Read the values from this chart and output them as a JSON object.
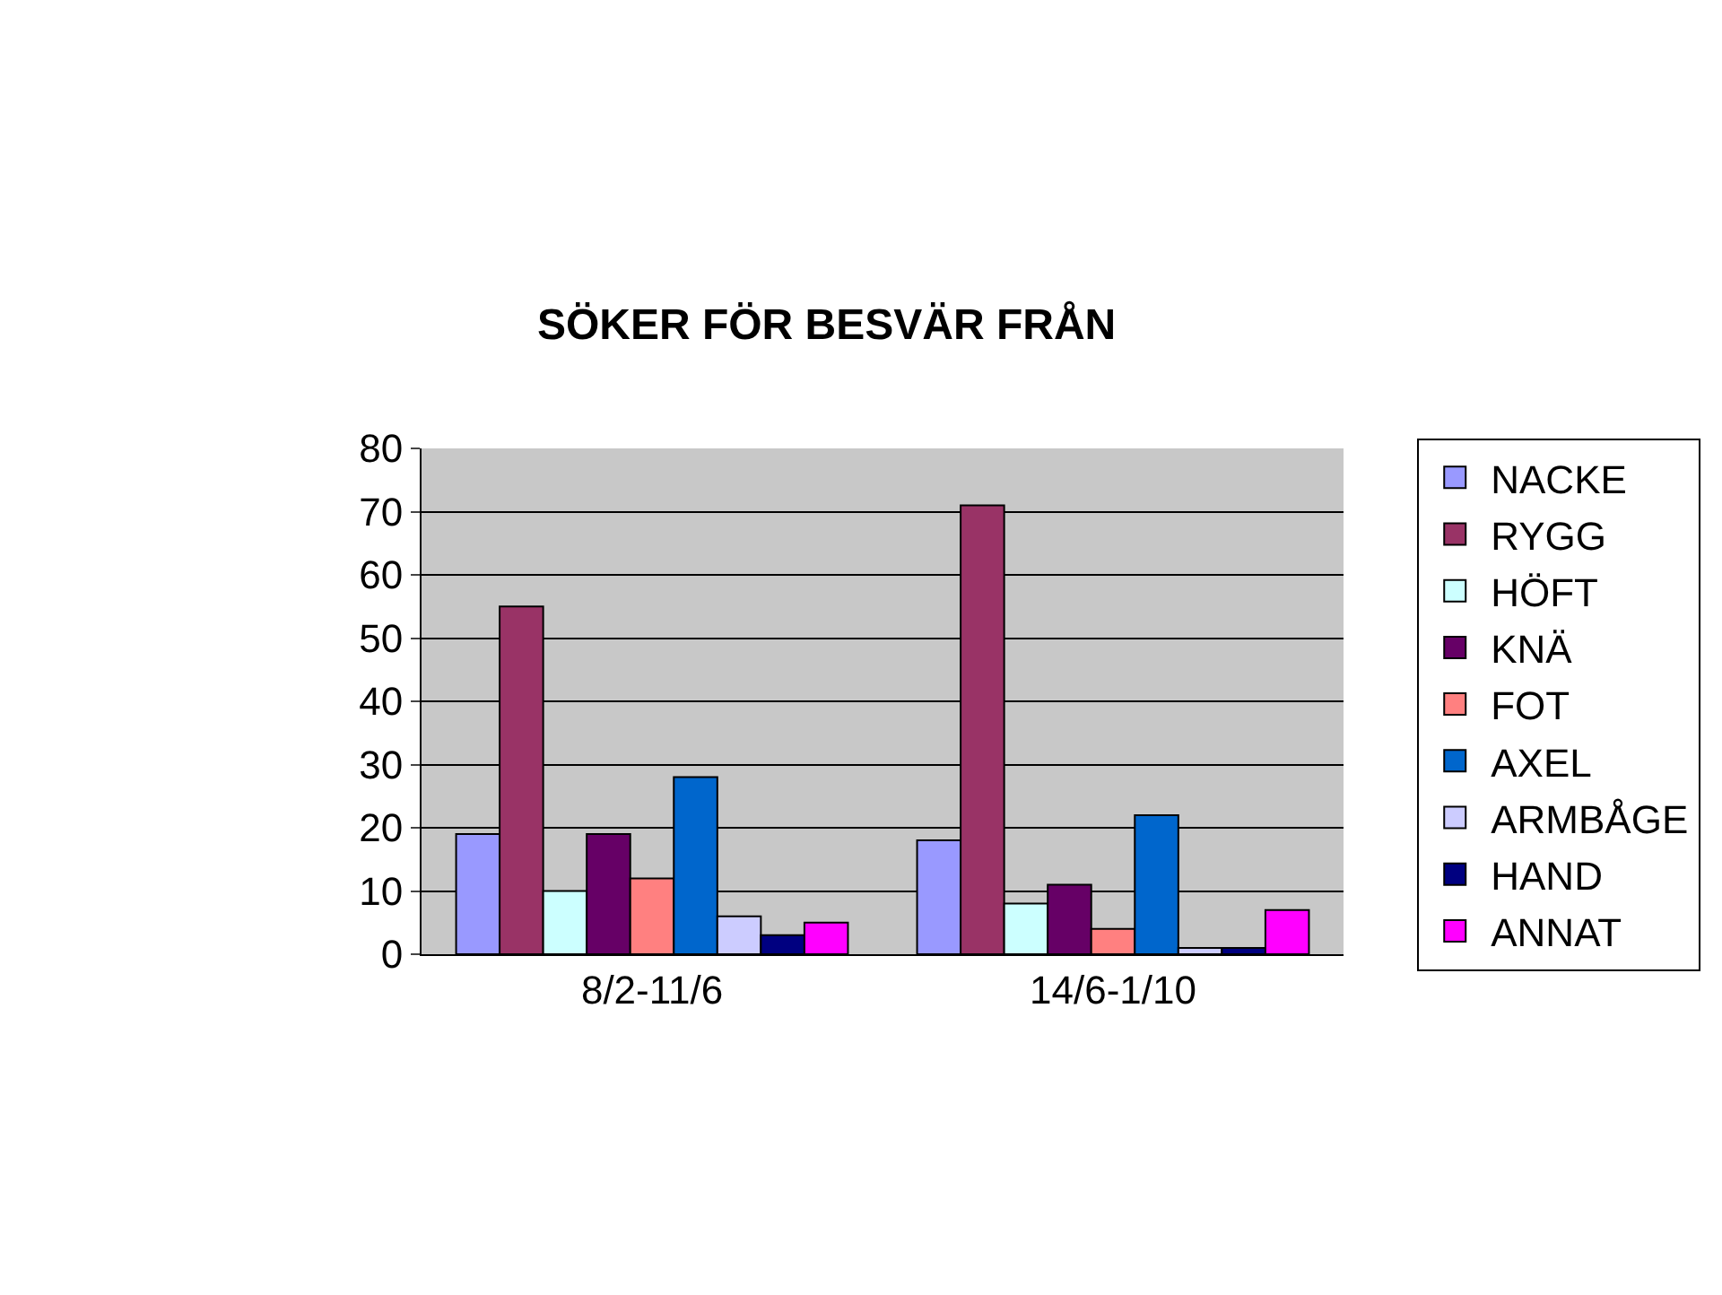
{
  "chart_data": {
    "type": "bar",
    "title": "SÖKER FÖR BESVÄR FRÅN",
    "categories": [
      "8/2-11/6",
      "14/6-1/10"
    ],
    "series": [
      {
        "name": "NACKE",
        "color": "#9999ff",
        "values": [
          19,
          18
        ]
      },
      {
        "name": "RYGG",
        "color": "#993366",
        "values": [
          55,
          71
        ]
      },
      {
        "name": "HÖFT",
        "color": "#ccffff",
        "values": [
          10,
          8
        ]
      },
      {
        "name": "KNÄ",
        "color": "#660066",
        "values": [
          19,
          11
        ]
      },
      {
        "name": "FOT",
        "color": "#ff8080",
        "values": [
          12,
          4
        ]
      },
      {
        "name": "AXEL",
        "color": "#0066cc",
        "values": [
          28,
          22
        ]
      },
      {
        "name": "ARMBÅGE",
        "color": "#ccccff",
        "values": [
          6,
          1
        ]
      },
      {
        "name": "HAND",
        "color": "#000080",
        "values": [
          3,
          1
        ]
      },
      {
        "name": "ANNAT",
        "color": "#ff00ff",
        "values": [
          5,
          7
        ]
      }
    ],
    "ylim": [
      0,
      80
    ],
    "yticks": [
      0,
      10,
      20,
      30,
      40,
      50,
      60,
      70,
      80
    ],
    "grid": "y",
    "legend": "right"
  }
}
